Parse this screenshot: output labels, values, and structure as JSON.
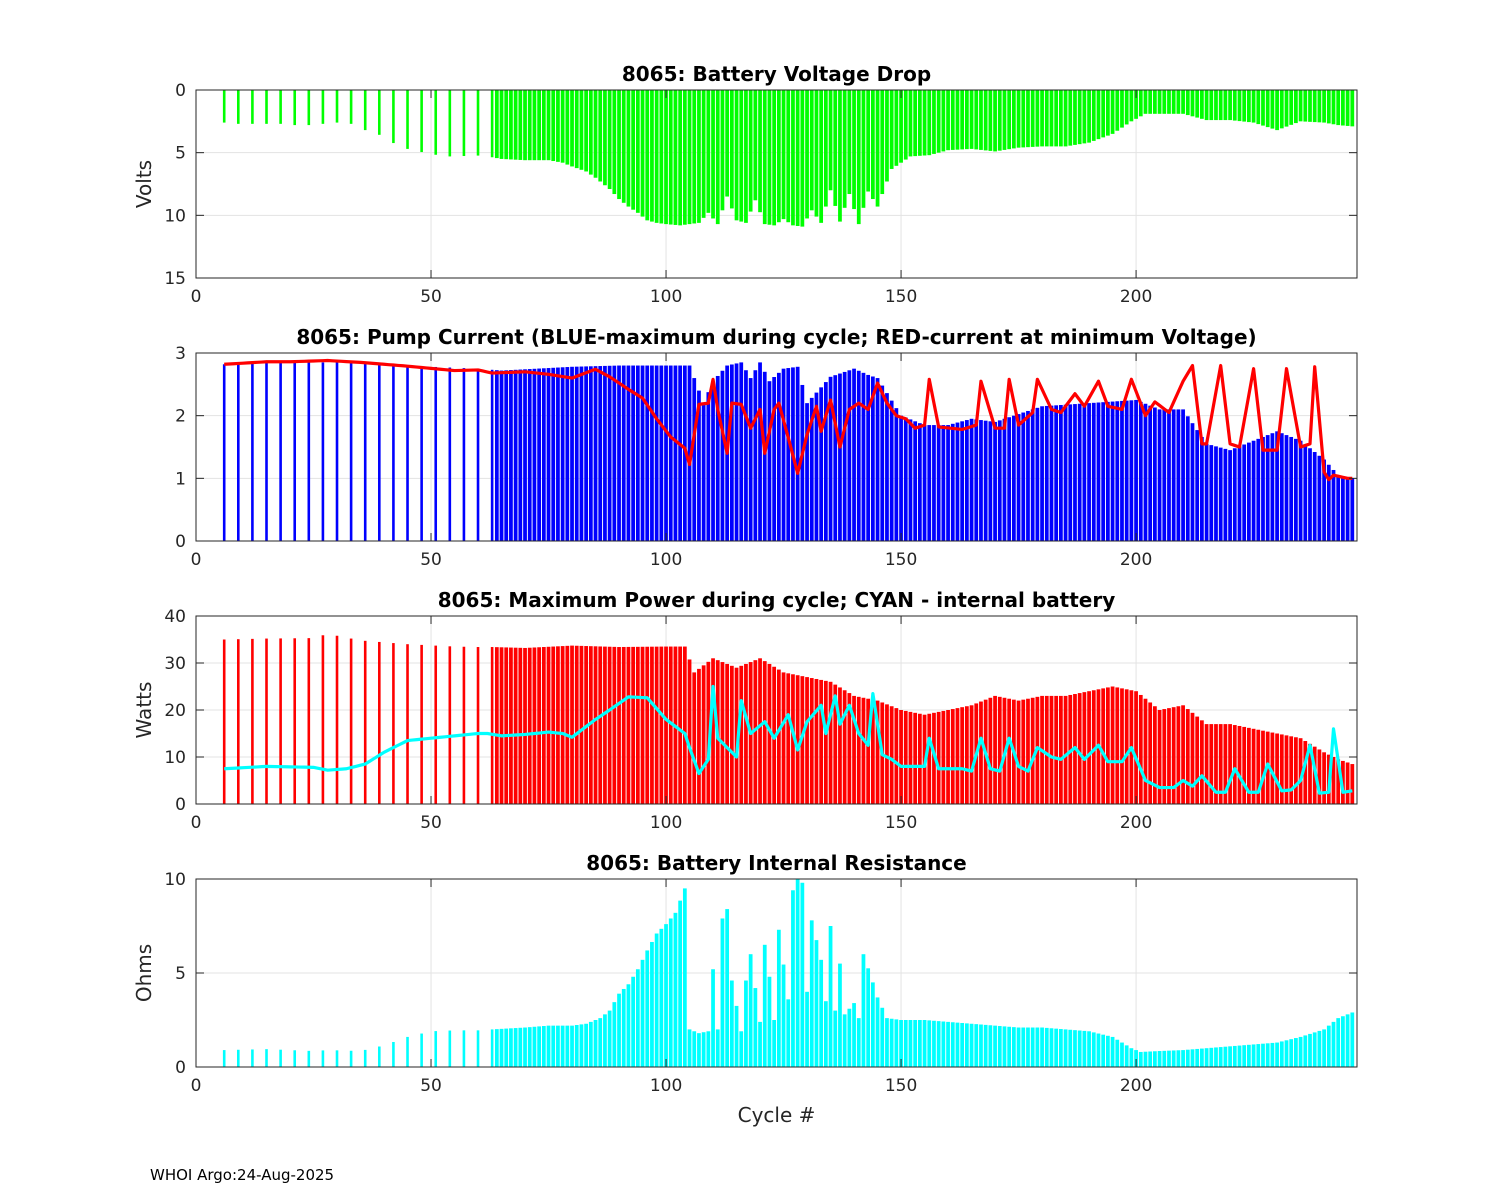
{
  "footer": "WHOI Argo:24-Aug-2025",
  "chart_data": [
    {
      "type": "bar",
      "title": "8065: Battery Voltage Drop",
      "xlabel": "",
      "ylabel": "Volts",
      "xlim": [
        0,
        247
      ],
      "ylim": [
        0,
        15
      ],
      "y_reversed": true,
      "grid": true,
      "xticks": [
        "0",
        "50",
        "100",
        "150",
        "200"
      ],
      "yticks": [
        "0",
        "5",
        "10",
        "15"
      ],
      "bar_color": "#00ff00",
      "keypoints": {
        "x": [
          6,
          9,
          12,
          15,
          18,
          21,
          24,
          27,
          30,
          33,
          36,
          40,
          43,
          46,
          50,
          53,
          56,
          59,
          62,
          65,
          70,
          75,
          78,
          80,
          83,
          85,
          88,
          90,
          92,
          94,
          96,
          98,
          100,
          103,
          105,
          107,
          109,
          111,
          113,
          115,
          117,
          119,
          121,
          123,
          125,
          127,
          129,
          131,
          133,
          135,
          137,
          139,
          141,
          143,
          145,
          148,
          152,
          156,
          160,
          165,
          170,
          175,
          180,
          185,
          190,
          195,
          199,
          202,
          206,
          210,
          215,
          220,
          225,
          230,
          235,
          240,
          243,
          246
        ],
        "y": [
          2.6,
          2.7,
          2.7,
          2.7,
          2.7,
          2.8,
          2.8,
          2.7,
          2.6,
          2.7,
          3.2,
          3.7,
          4.5,
          4.8,
          5.1,
          5.3,
          5.3,
          5.2,
          5.3,
          5.5,
          5.6,
          5.6,
          5.8,
          6.1,
          6.5,
          7.0,
          7.9,
          8.7,
          9.3,
          9.8,
          10.4,
          10.6,
          10.7,
          10.8,
          10.7,
          10.6,
          9.8,
          10.7,
          8.5,
          10.4,
          10.6,
          8.8,
          10.7,
          10.8,
          10.3,
          10.8,
          10.9,
          9.6,
          10.6,
          8.0,
          10.5,
          8.3,
          10.7,
          8.1,
          9.3,
          6.3,
          5.3,
          5.2,
          4.8,
          4.7,
          4.9,
          4.6,
          4.5,
          4.5,
          4.2,
          3.5,
          2.5,
          1.9,
          1.9,
          1.9,
          2.4,
          2.4,
          2.6,
          3.2,
          2.5,
          2.6,
          2.8,
          2.9
        ]
      }
    },
    {
      "type": "bar+line",
      "title": "8065: Pump Current (BLUE-maximum during cycle; RED-current at minimum Voltage)",
      "xlabel": "",
      "ylabel": "",
      "xlim": [
        0,
        247
      ],
      "ylim": [
        0,
        3
      ],
      "grid": true,
      "xticks": [
        "0",
        "50",
        "100",
        "150",
        "200"
      ],
      "yticks": [
        "0",
        "1",
        "2",
        "3"
      ],
      "series": [
        {
          "name": "maximum during cycle",
          "kind": "bar",
          "color": "#0000ff",
          "keypoints": {
            "x": [
              6,
              15,
              25,
              30,
              40,
              50,
              60,
              65,
              80,
              90,
              100,
              105,
              108,
              110,
              113,
              116,
              118,
              120,
              122,
              125,
              128,
              130,
              135,
              140,
              143,
              145,
              150,
              155,
              160,
              165,
              170,
              180,
              190,
              200,
              205,
              210,
              215,
              220,
              225,
              230,
              235,
              240,
              243,
              246
            ],
            "y": [
              2.82,
              2.85,
              2.85,
              2.85,
              2.82,
              2.78,
              2.75,
              2.72,
              2.78,
              2.8,
              2.8,
              2.8,
              2.2,
              2.55,
              2.8,
              2.85,
              2.6,
              2.85,
              2.55,
              2.75,
              2.78,
              2.2,
              2.62,
              2.75,
              2.65,
              2.6,
              2.0,
              1.85,
              1.85,
              1.95,
              1.9,
              2.15,
              2.2,
              2.25,
              2.1,
              2.1,
              1.55,
              1.45,
              1.6,
              1.75,
              1.6,
              1.3,
              1.05,
              1.0
            ]
          }
        },
        {
          "name": "current at minimum Voltage",
          "kind": "line",
          "color": "#ff0000",
          "keypoints": {
            "x": [
              6,
              15,
              20,
              28,
              35,
              45,
              55,
              60,
              63,
              70,
              75,
              80,
              85,
              88,
              92,
              95,
              98,
              101,
              104,
              105,
              107,
              109,
              110,
              111,
              113,
              114,
              116,
              118,
              120,
              121,
              123,
              124,
              126,
              128,
              130,
              132,
              133,
              135,
              137,
              139,
              141,
              143,
              145,
              147,
              149,
              151,
              153,
              155,
              156,
              158,
              163,
              166,
              167,
              170,
              172,
              173,
              175,
              178,
              179,
              182,
              184,
              187,
              189,
              192,
              194,
              197,
              199,
              202,
              204,
              207,
              210,
              212,
              214,
              215,
              218,
              220,
              222,
              225,
              227,
              230,
              232,
              235,
              237,
              238,
              240,
              241,
              242,
              245,
              246
            ],
            "y": [
              2.82,
              2.86,
              2.86,
              2.88,
              2.85,
              2.79,
              2.72,
              2.73,
              2.68,
              2.7,
              2.66,
              2.6,
              2.74,
              2.62,
              2.42,
              2.28,
              1.95,
              1.66,
              1.48,
              1.22,
              2.18,
              2.2,
              2.58,
              2.1,
              1.4,
              2.2,
              2.18,
              1.8,
              2.1,
              1.4,
              2.1,
              2.2,
              1.65,
              1.08,
              1.7,
              2.15,
              1.75,
              2.25,
              1.5,
              2.1,
              2.2,
              2.1,
              2.52,
              2.2,
              2.0,
              1.95,
              1.8,
              1.85,
              2.58,
              1.82,
              1.78,
              1.85,
              2.55,
              1.8,
              1.8,
              2.58,
              1.85,
              2.05,
              2.58,
              2.1,
              2.05,
              2.35,
              2.15,
              2.55,
              2.15,
              2.1,
              2.58,
              2.0,
              2.22,
              2.05,
              2.55,
              2.8,
              1.55,
              1.55,
              2.8,
              1.55,
              1.5,
              2.75,
              1.45,
              1.45,
              2.75,
              1.5,
              1.55,
              2.78,
              1.1,
              0.98,
              1.05,
              1.0,
              1.0
            ]
          }
        }
      ]
    },
    {
      "type": "bar+line",
      "title": "8065: Maximum Power during cycle; CYAN - internal battery",
      "xlabel": "",
      "ylabel": "Watts",
      "xlim": [
        0,
        247
      ],
      "ylim": [
        0,
        40
      ],
      "grid": true,
      "xticks": [
        "0",
        "50",
        "100",
        "150",
        "200"
      ],
      "yticks": [
        "0",
        "10",
        "20",
        "30",
        "40"
      ],
      "series": [
        {
          "name": "Maximum Power",
          "kind": "bar",
          "color": "#ff0000",
          "keypoints": {
            "x": [
              6,
              15,
              25,
              28,
              35,
              45,
              55,
              60,
              63,
              70,
              80,
              90,
              100,
              104,
              106,
              110,
              115,
              120,
              125,
              130,
              135,
              140,
              145,
              150,
              155,
              160,
              165,
              170,
              175,
              180,
              185,
              190,
              195,
              200,
              205,
              210,
              215,
              220,
              225,
              230,
              235,
              240,
              243,
              246
            ],
            "y": [
              35,
              35.2,
              35.3,
              36.2,
              34.8,
              34,
              33.5,
              33.4,
              33.4,
              33.2,
              33.7,
              33.4,
              33.5,
              33.5,
              28,
              31,
              29,
              31,
              28,
              27,
              26,
              23,
              22,
              20,
              19,
              20,
              21,
              23,
              22,
              23,
              23,
              24,
              25,
              24,
              20,
              21,
              17,
              17,
              16,
              15,
              14,
              11,
              9.5,
              8.5
            ]
          }
        },
        {
          "name": "internal battery",
          "kind": "line",
          "color": "#00ffff",
          "keypoints": {
            "x": [
              6,
              15,
              25,
              28,
              32,
              36,
              40,
              45,
              50,
              55,
              60,
              62,
              65,
              70,
              75,
              78,
              80,
              85,
              88,
              92,
              96,
              100,
              104,
              105,
              107,
              109,
              110,
              111,
              113,
              115,
              116,
              118,
              121,
              123,
              126,
              128,
              130,
              133,
              134,
              136,
              137,
              139,
              141,
              143,
              144,
              146,
              148,
              150,
              152,
              155,
              156,
              158,
              163,
              165,
              167,
              169,
              171,
              173,
              175,
              177,
              179,
              182,
              184,
              187,
              189,
              192,
              194,
              197,
              199,
              202,
              205,
              208,
              210,
              212,
              214,
              217,
              219,
              221,
              224,
              226,
              228,
              231,
              233,
              235,
              237,
              239,
              241,
              242,
              244,
              246
            ],
            "y": [
              7.5,
              8,
              7.8,
              7.2,
              7.5,
              8.5,
              11,
              13.5,
              14,
              14.5,
              15,
              15,
              14.5,
              14.8,
              15.3,
              15,
              14.2,
              18,
              20,
              22.8,
              22.6,
              18,
              15,
              12,
              6.5,
              9.5,
              25,
              14,
              12,
              10,
              22,
              15,
              17.5,
              14,
              19,
              11.5,
              17.5,
              21,
              15,
              23,
              17,
              21,
              15,
              12.5,
              23.5,
              10.5,
              9.5,
              8,
              8,
              8,
              14,
              7.5,
              7.5,
              7,
              14,
              7.5,
              7,
              14,
              8,
              7,
              12,
              10,
              9.5,
              12,
              9.5,
              12.5,
              9,
              9,
              12,
              5,
              3.5,
              3.5,
              5,
              3.8,
              6,
              2.5,
              2.5,
              7.5,
              2.5,
              2.5,
              8.5,
              2.8,
              3,
              5,
              12.5,
              2.3,
              2.5,
              16,
              2.5,
              2.8
            ]
          }
        }
      ]
    },
    {
      "type": "bar",
      "title": "8065: Battery Internal Resistance",
      "xlabel": "Cycle #",
      "ylabel": "Ohms",
      "xlim": [
        0,
        247
      ],
      "ylim": [
        0,
        10
      ],
      "grid": true,
      "xticks": [
        "0",
        "50",
        "100",
        "150",
        "200"
      ],
      "yticks": [
        "0",
        "5",
        "10"
      ],
      "bar_color": "#00ffff",
      "keypoints": {
        "x": [
          6,
          15,
          25,
          28,
          35,
          40,
          45,
          50,
          55,
          60,
          63,
          70,
          75,
          80,
          83,
          86,
          88,
          90,
          92,
          94,
          96,
          98,
          100,
          102,
          104,
          105,
          107,
          109,
          110,
          111,
          112,
          113,
          114,
          116,
          117,
          118,
          120,
          121,
          122,
          123,
          124,
          126,
          127,
          128,
          129,
          130,
          131,
          133,
          134,
          135,
          136,
          137,
          138,
          140,
          141,
          142,
          144,
          145,
          147,
          150,
          155,
          160,
          165,
          170,
          175,
          180,
          185,
          190,
          195,
          199,
          201,
          205,
          210,
          215,
          220,
          225,
          230,
          235,
          240,
          243,
          246
        ],
        "y": [
          0.9,
          0.95,
          0.85,
          0.9,
          0.85,
          1.15,
          1.6,
          1.9,
          1.95,
          1.95,
          2.0,
          2.1,
          2.2,
          2.2,
          2.3,
          2.6,
          3.0,
          3.9,
          4.4,
          5.2,
          6.2,
          7.1,
          7.6,
          8.2,
          9.5,
          2.0,
          1.8,
          1.9,
          5.2,
          2.0,
          7.9,
          8.4,
          4.6,
          1.9,
          4.6,
          6.0,
          2.4,
          6.5,
          4.8,
          2.5,
          7.3,
          3.6,
          9.4,
          10.0,
          9.8,
          4.0,
          7.8,
          5.7,
          3.5,
          7.5,
          3.0,
          5.5,
          2.8,
          3.4,
          2.6,
          6.0,
          4.5,
          3.7,
          2.6,
          2.5,
          2.5,
          2.4,
          2.3,
          2.2,
          2.1,
          2.1,
          2.0,
          1.9,
          1.6,
          1.0,
          0.8,
          0.85,
          0.9,
          1.0,
          1.1,
          1.2,
          1.3,
          1.6,
          2.0,
          2.6,
          2.9
        ]
      }
    }
  ]
}
